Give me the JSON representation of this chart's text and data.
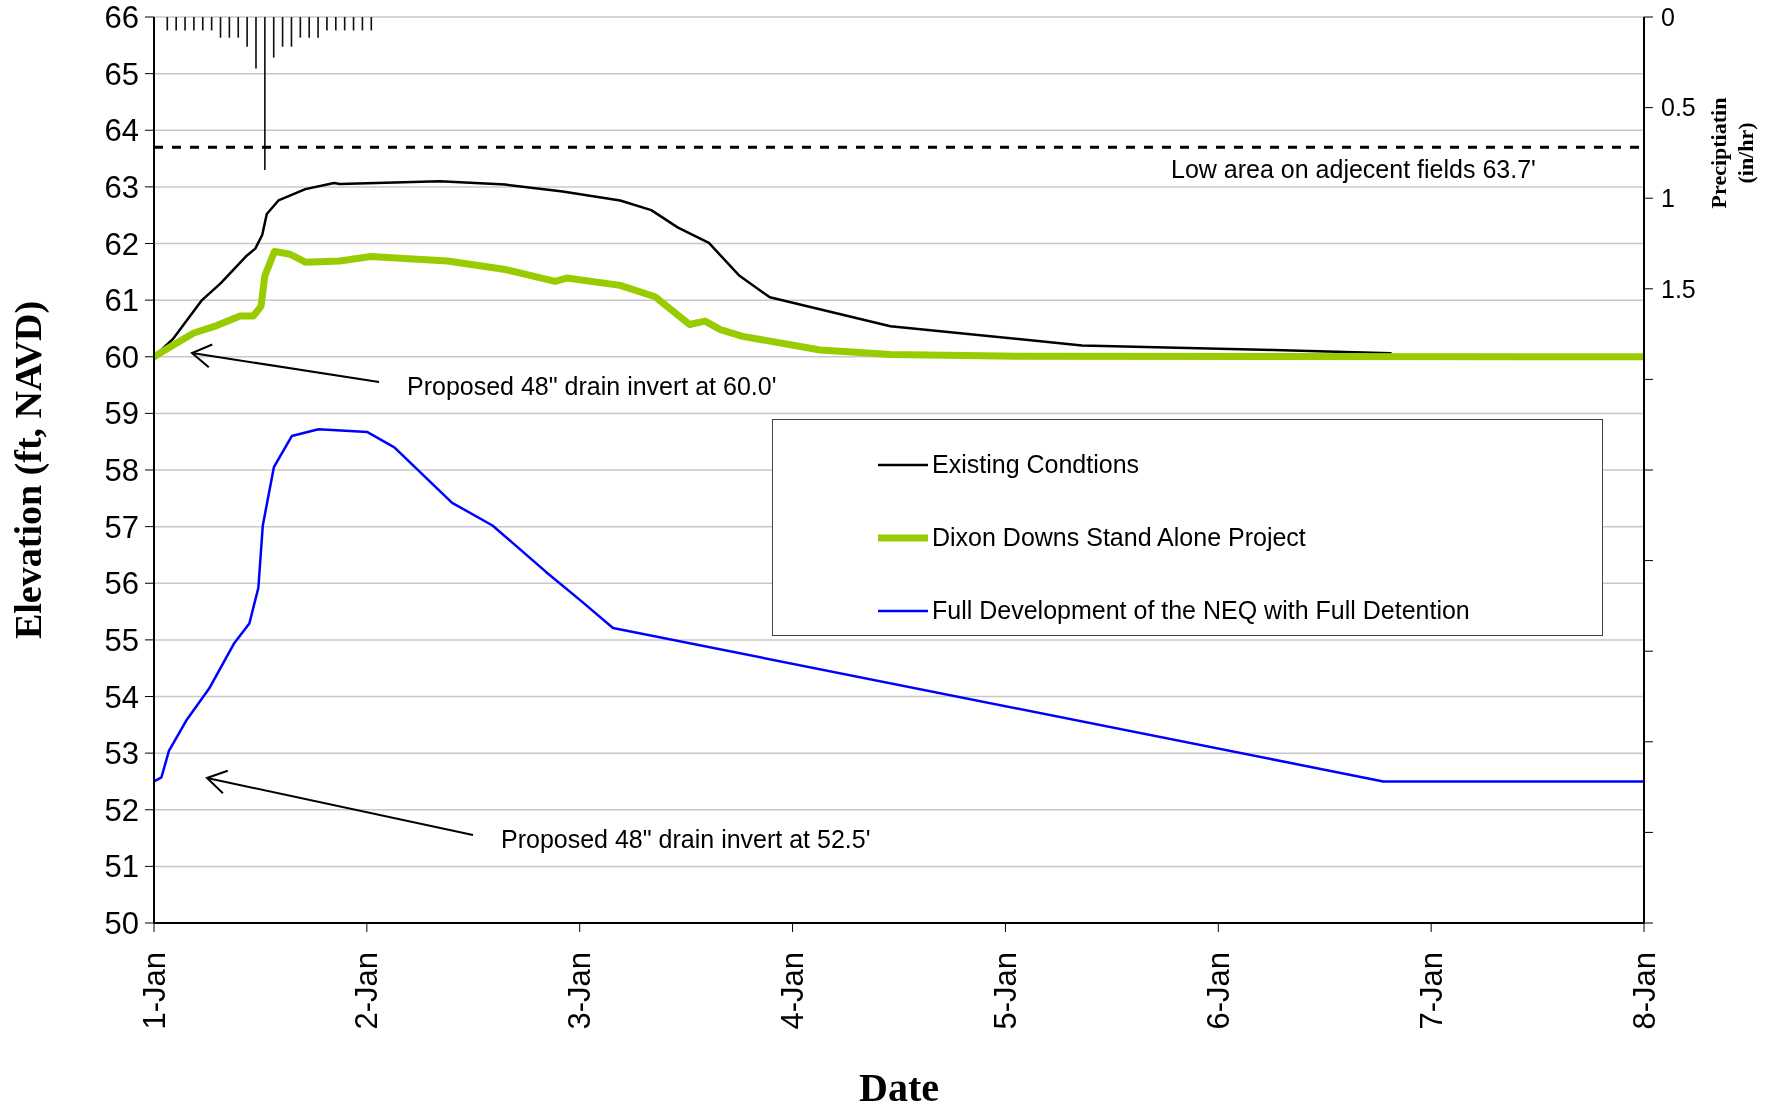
{
  "chart_data": {
    "type": "line",
    "xlabel": "Date",
    "ylabel": "Elevation (ft, NAVD)",
    "y2label": "Preciptiatin (in/hr)",
    "xlim": [
      "--01-01",
      "--01-08"
    ],
    "xticks": [
      {
        "value": "--01-01",
        "label": "1-Jan"
      },
      {
        "value": "--01-02",
        "label": "2-Jan"
      },
      {
        "value": "--01-03",
        "label": "3-Jan"
      },
      {
        "value": "--01-04",
        "label": "4-Jan"
      },
      {
        "value": "--01-05",
        "label": "5-Jan"
      },
      {
        "value": "--01-06",
        "label": "6-Jan"
      },
      {
        "value": "--01-07",
        "label": "7-Jan"
      },
      {
        "value": "--01-08",
        "label": "8-Jan"
      }
    ],
    "ylim": [
      50,
      66
    ],
    "yticks": [
      50,
      51,
      52,
      53,
      54,
      55,
      56,
      57,
      58,
      59,
      60,
      61,
      62,
      63,
      64,
      65,
      66
    ],
    "y2lim": [
      5,
      0
    ],
    "y2ticks": [
      0,
      0.5,
      1,
      1.5,
      {
        "value": 2,
        "label": null
      },
      {
        "value": 2.5,
        "label": null
      },
      {
        "value": 3,
        "label": null
      },
      {
        "value": 3.5,
        "label": null
      },
      {
        "value": 4,
        "label": null
      },
      {
        "value": 4.5,
        "label": null
      },
      {
        "value": 5,
        "label": null
      }
    ],
    "grid": "y",
    "legend": "right",
    "series": [
      {
        "name": "Existing Condtions",
        "color": "#000000",
        "x": [
          "--01-01T00:00",
          "--01-01T02:07",
          "--01-01T05:21",
          "--01-01T07:32",
          "--01-01T10:21",
          "--01-01T11:25",
          "--01-01T12:12",
          "--01-01T12:43",
          "--01-01T14:02",
          "--01-01T17:04",
          "--01-01T20:18",
          "--01-01T20:57",
          "--01-02T08:14",
          "--01-02T15:36",
          "--01-02T22:05",
          "--01-03T04:34",
          "--01-03T08:04",
          "--01-03T11:05",
          "--01-03T14:34",
          "--01-03T18:01",
          "--01-03T21:26",
          "--01-04T11:02",
          "--01-05T08:38",
          "--01-06T06:14",
          "--01-06T19:26"
        ],
        "values": [
          60.0,
          60.31,
          60.99,
          61.3,
          61.77,
          61.91,
          62.15,
          62.52,
          62.76,
          62.96,
          63.07,
          63.05,
          63.1,
          63.04,
          62.92,
          62.76,
          62.59,
          62.28,
          62.01,
          61.43,
          61.05,
          60.54,
          60.2,
          60.12,
          60.06
        ]
      },
      {
        "name": "Dixon Downs Stand Alone Project",
        "color": "#99cc00",
        "x": [
          "--01-01T00:00",
          "--01-01T01:54",
          "--01-01T04:29",
          "--01-01T07:05",
          "--01-01T09:42",
          "--01-01T11:12",
          "--01-01T12:04",
          "--01-01T12:30",
          "--01-01T13:35",
          "--01-01T15:20",
          "--01-01T17:04",
          "--01-01T20:57",
          "--01-02T00:26",
          "--01-02T09:06",
          "--01-02T15:36",
          "--01-02T21:14",
          "--01-02T22:32",
          "--01-03T04:34",
          "--01-03T08:30",
          "--01-03T12:23",
          "--01-03T14:08",
          "--01-03T15:52",
          "--01-03T18:22",
          "--01-04T03:07",
          "--01-04T11:02",
          "--01-05T01:26",
          "--01-08T00:00"
        ],
        "values": [
          60.0,
          60.18,
          60.42,
          60.55,
          60.72,
          60.72,
          60.89,
          61.43,
          61.86,
          61.81,
          61.67,
          61.69,
          61.77,
          61.69,
          61.54,
          61.33,
          61.39,
          61.26,
          61.06,
          60.57,
          60.63,
          60.48,
          60.36,
          60.12,
          60.04,
          60.01,
          60.0
        ]
      },
      {
        "name": "Full Development of the NEQ with Full Detention",
        "color": "#0000ff",
        "x": [
          "--01-01T00:00",
          "--01-01T00:50",
          "--01-01T01:41",
          "--01-01T03:42",
          "--01-01T06:13",
          "--01-01T09:00",
          "--01-01T10:45",
          "--01-01T11:46",
          "--01-01T12:16",
          "--01-01T13:31",
          "--01-01T15:32",
          "--01-01T18:33",
          "--01-02T00:04",
          "--01-02T03:06",
          "--01-02T09:37",
          "--01-02T14:10",
          "--01-02T20:12",
          "--01-03T00:13",
          "--01-03T03:45",
          "--01-06T18:36",
          "--01-08T00:00"
        ],
        "values": [
          52.5,
          52.57,
          53.04,
          53.59,
          54.14,
          54.93,
          55.29,
          55.92,
          57.02,
          58.05,
          58.6,
          58.72,
          58.67,
          58.4,
          57.42,
          57.02,
          56.2,
          55.68,
          55.21,
          52.5,
          52.5
        ]
      },
      {
        "type": "bar",
        "axis": "y2",
        "color": "#1a9a9a",
        "x": [
          "--01-01T01:30",
          "--01-01T02:30",
          "--01-01T03:30",
          "--01-01T04:30",
          "--01-01T05:30",
          "--01-01T06:30",
          "--01-01T07:30",
          "--01-01T08:30",
          "--01-01T09:30",
          "--01-01T10:30",
          "--01-01T11:30",
          "--01-01T12:30",
          "--01-01T13:30",
          "--01-01T14:30",
          "--01-01T15:30",
          "--01-01T16:30",
          "--01-01T17:30",
          "--01-01T18:30",
          "--01-01T19:30",
          "--01-01T20:30",
          "--01-01T21:30",
          "--01-01T22:30",
          "--01-01T23:30",
          "--01-02T00:30"
        ],
        "values": [
          0.07,
          0.07,
          0.07,
          0.07,
          0.07,
          0.07,
          0.11,
          0.11,
          0.11,
          0.16,
          0.28,
          0.84,
          0.22,
          0.16,
          0.16,
          0.11,
          0.11,
          0.11,
          0.07,
          0.07,
          0.07,
          0.07,
          0.07,
          0.07
        ]
      }
    ],
    "ref_lines": [
      {
        "axis": "y",
        "value": 63.7,
        "label": "Low area on adjecent fields 63.7'",
        "color": "#000000",
        "line_style": "dashed"
      }
    ],
    "annotations": [
      "Proposed 48\" drain invert at 60.0'",
      "Proposed 48\" drain invert at 52.5'"
    ]
  }
}
